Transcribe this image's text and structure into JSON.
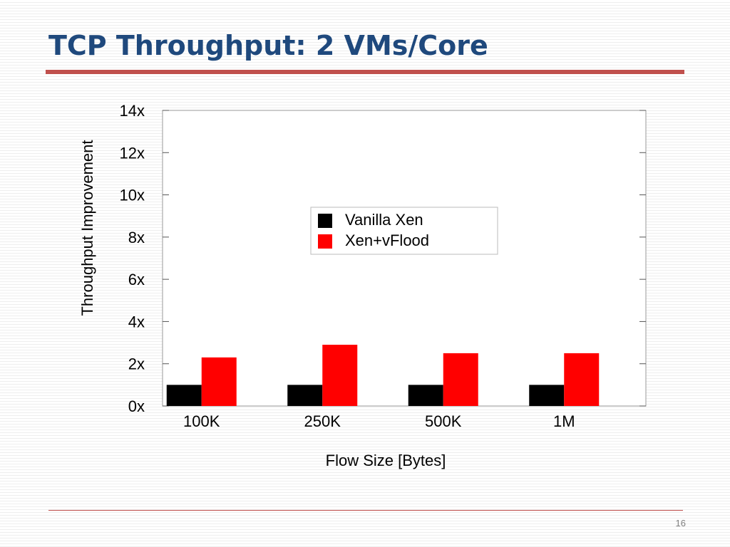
{
  "slide": {
    "title": "TCP Throughput: 2 VMs/Core",
    "page_number": "16",
    "colors": {
      "title": "#1f497d",
      "accent_rule": "#c0504d"
    }
  },
  "chart_data": {
    "type": "bar",
    "title": "",
    "xlabel": "Flow Size [Bytes]",
    "ylabel": "Throughput Improvement",
    "categories": [
      "100K",
      "250K",
      "500K",
      "1M"
    ],
    "series": [
      {
        "name": "Vanilla Xen",
        "color": "#000000",
        "values": [
          1,
          1,
          1,
          1
        ]
      },
      {
        "name": "Xen+vFlood",
        "color": "#ff0000",
        "values": [
          2.3,
          2.9,
          2.5,
          2.5
        ]
      }
    ],
    "ylim": [
      0,
      14
    ],
    "yticks": [
      0,
      2,
      4,
      6,
      8,
      10,
      12,
      14
    ],
    "ytick_labels": [
      "0x",
      "2x",
      "4x",
      "6x",
      "8x",
      "10x",
      "12x",
      "14x"
    ],
    "grid": false,
    "legend": "top-center"
  }
}
